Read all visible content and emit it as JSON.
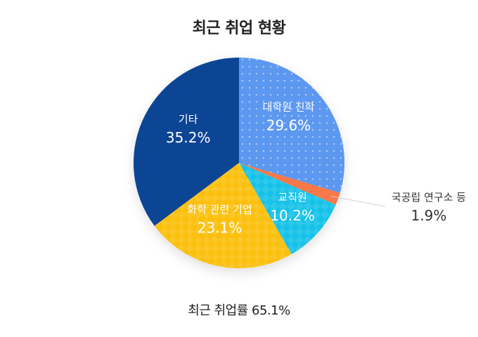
{
  "chart_data": {
    "type": "pie",
    "title": "최근 취업 현황",
    "footer": "최근 취업률 65.1%",
    "start_angle_deg": 0,
    "direction": "clockwise",
    "slices": [
      {
        "label": "대학원 진학",
        "value": 29.6,
        "value_label": "29.6%",
        "color": "#5B97F0",
        "pattern": "dots"
      },
      {
        "label": "국공립 연구소 등",
        "value": 1.9,
        "value_label": "1.9%",
        "color": "#F7784A",
        "pattern": "none"
      },
      {
        "label": "교직원",
        "value": 10.2,
        "value_label": "10.2%",
        "color": "#12C2E8",
        "pattern": "diamonds"
      },
      {
        "label": "화학 관련 기업",
        "value": 23.1,
        "value_label": "23.1%",
        "color": "#FBBF0A",
        "pattern": "diamonds"
      },
      {
        "label": "기타",
        "value": 35.2,
        "value_label": "35.2%",
        "color": "#0A4595",
        "pattern": "none"
      }
    ]
  }
}
